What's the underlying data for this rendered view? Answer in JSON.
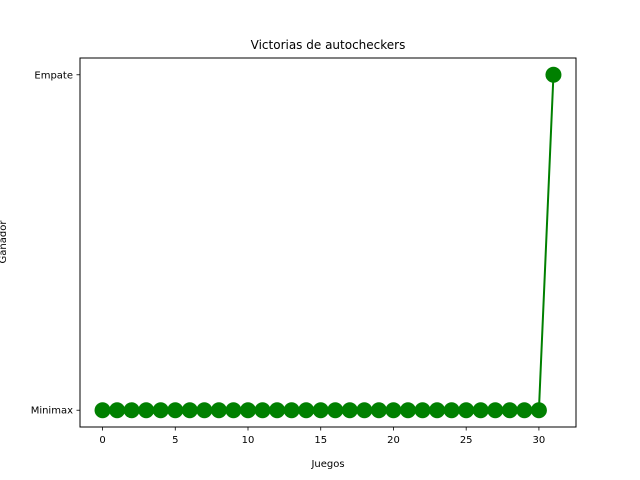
{
  "chart_data": {
    "type": "line",
    "title": "Victorias de autocheckers",
    "xlabel": "Juegos",
    "ylabel": "Ganador",
    "x_ticks": [
      0,
      5,
      10,
      15,
      20,
      25,
      30
    ],
    "xlim": [
      -1.55,
      32.55
    ],
    "y_categories": [
      "Minimax",
      "Empate"
    ],
    "grid": false,
    "series": [
      {
        "color": "#008000",
        "marker": "circle",
        "x": [
          0,
          1,
          2,
          3,
          4,
          5,
          6,
          7,
          8,
          9,
          10,
          11,
          12,
          13,
          14,
          15,
          16,
          17,
          18,
          19,
          20,
          21,
          22,
          23,
          24,
          25,
          26,
          27,
          28,
          29,
          30,
          31
        ],
        "y": [
          "Minimax",
          "Minimax",
          "Minimax",
          "Minimax",
          "Minimax",
          "Minimax",
          "Minimax",
          "Minimax",
          "Minimax",
          "Minimax",
          "Minimax",
          "Minimax",
          "Minimax",
          "Minimax",
          "Minimax",
          "Minimax",
          "Minimax",
          "Minimax",
          "Minimax",
          "Minimax",
          "Minimax",
          "Minimax",
          "Minimax",
          "Minimax",
          "Minimax",
          "Minimax",
          "Minimax",
          "Minimax",
          "Minimax",
          "Minimax",
          "Minimax",
          "Empate"
        ]
      }
    ]
  }
}
